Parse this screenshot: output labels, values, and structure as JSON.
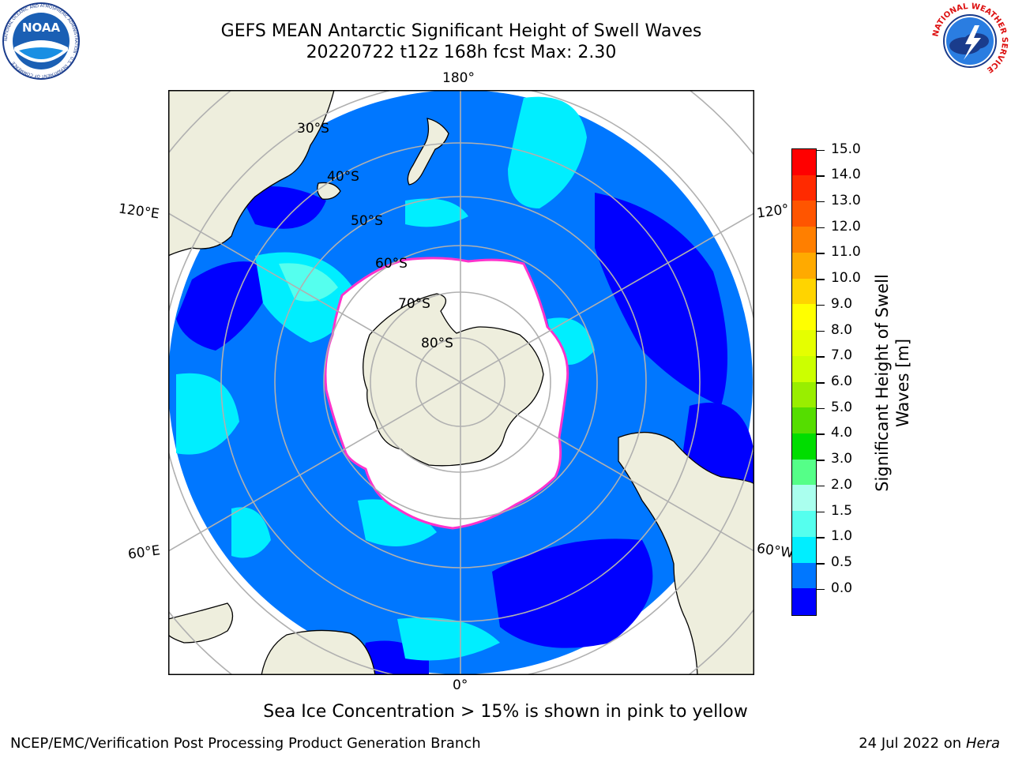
{
  "header": {
    "title_line1": "GEFS MEAN Antarctic Significant Height of Swell Waves",
    "title_line2": "20220722 t12z 168h fcst   Max: 2.30"
  },
  "logos": {
    "noaa_text": "NOAA",
    "noaa_ring_text": "NATIONAL OCEANIC AND ATMOSPHERIC ADMINISTRATION · U.S. DEPARTMENT OF COMMERCE",
    "nws_ring_text": "NATIONAL WEATHER SERVICE"
  },
  "map": {
    "projection": "south-polar-stereographic",
    "meridian_labels": [
      "180°",
      "120°E",
      "120°",
      "60°E",
      "60°W",
      "0°"
    ],
    "parallel_labels": [
      "30°S",
      "40°S",
      "50°S",
      "60°S",
      "70°S",
      "80°S"
    ],
    "colors": {
      "land": "#eeeedd",
      "sea_ice": "#ffffff",
      "ice_edge": "#ff33cc",
      "grid": "#b0b0b0"
    }
  },
  "colorbar": {
    "label_line1": "Significant Height of Swell",
    "label_line2": "Waves [m]",
    "ticks": [
      "15.0",
      "14.0",
      "13.0",
      "12.0",
      "11.0",
      "10.0",
      "9.0",
      "8.0",
      "7.0",
      "6.0",
      "5.0",
      "4.0",
      "3.0",
      "2.0",
      "1.5",
      "1.0",
      "0.5",
      "0.0"
    ],
    "colors_top_to_bottom": [
      "#ff0000",
      "#ff2a00",
      "#ff5500",
      "#ff7f00",
      "#ffaa00",
      "#ffd400",
      "#ffff00",
      "#e5ff00",
      "#ccff00",
      "#99ee00",
      "#55dd00",
      "#00dd00",
      "#55ff88",
      "#aaffee",
      "#55ffee",
      "#00eeff",
      "#0077ff",
      "#0000ff"
    ]
  },
  "note": "Sea Ice Concentration > 15% is shown in pink to yellow",
  "footer": {
    "left": "NCEP/EMC/Verification Post Processing Product Generation Branch",
    "right_prefix": "24 Jul 2022 on ",
    "right_host": "Hera"
  }
}
